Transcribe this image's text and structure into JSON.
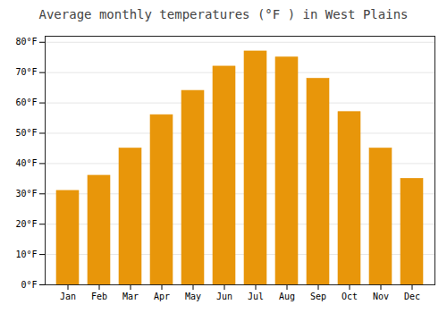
{
  "chart_data": {
    "type": "bar",
    "title": "Average monthly temperatures (°F ) in West Plains",
    "categories": [
      "Jan",
      "Feb",
      "Mar",
      "Apr",
      "May",
      "Jun",
      "Jul",
      "Aug",
      "Sep",
      "Oct",
      "Nov",
      "Dec"
    ],
    "values": [
      31,
      36,
      45,
      56,
      64,
      72,
      77,
      75,
      68,
      57,
      45,
      35
    ],
    "color": "#E8960A",
    "ylim": [
      0,
      82
    ],
    "yticks": [
      {
        "value": 0,
        "label": "0°F"
      },
      {
        "value": 10,
        "label": "10°F"
      },
      {
        "value": 20,
        "label": "20°F"
      },
      {
        "value": 30,
        "label": "30°F"
      },
      {
        "value": 40,
        "label": "40°F"
      },
      {
        "value": 50,
        "label": "50°F"
      },
      {
        "value": 60,
        "label": "60°F"
      },
      {
        "value": 70,
        "label": "70°F"
      },
      {
        "value": 80,
        "label": "80°F"
      }
    ],
    "grid": true
  }
}
